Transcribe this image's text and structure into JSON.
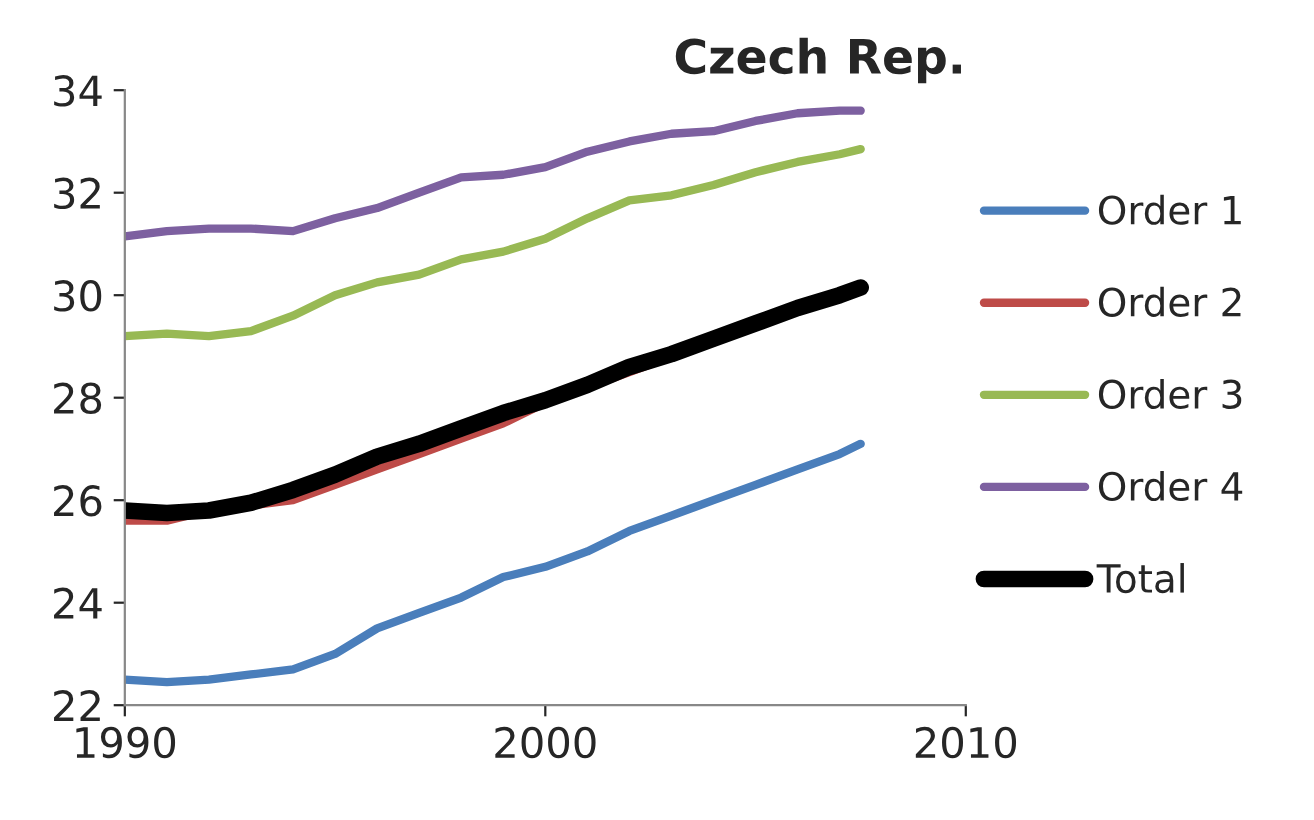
{
  "chart_data": {
    "type": "line",
    "title": "Czech Rep.",
    "x": [
      1990,
      1991,
      1992,
      1993,
      1994,
      1995,
      1996,
      1997,
      1998,
      1999,
      2000,
      2001,
      2002,
      2003,
      2004,
      2005,
      2006,
      2007,
      2007.5
    ],
    "series": [
      {
        "name": "Order 1",
        "color": "#4a7ebb",
        "values": [
          22.5,
          22.45,
          22.5,
          22.6,
          22.7,
          23.0,
          23.5,
          23.8,
          24.1,
          24.5,
          24.7,
          25.0,
          25.4,
          25.7,
          26.0,
          26.3,
          26.6,
          26.9,
          27.1
        ]
      },
      {
        "name": "Order 2",
        "color": "#be4b48",
        "values": [
          25.6,
          25.6,
          25.8,
          25.9,
          26.0,
          26.3,
          26.6,
          26.9,
          27.2,
          27.5,
          27.9,
          28.2,
          28.5,
          28.8,
          null,
          null,
          null,
          null,
          null
        ]
      },
      {
        "name": "Order 3",
        "color": "#98b954",
        "values": [
          29.2,
          29.25,
          29.2,
          29.3,
          29.6,
          30.0,
          30.25,
          30.4,
          30.7,
          30.85,
          31.1,
          31.5,
          31.85,
          31.95,
          32.15,
          32.4,
          32.6,
          32.75,
          32.85
        ]
      },
      {
        "name": "Order 4",
        "color": "#7d60a0",
        "values": [
          31.15,
          31.25,
          31.3,
          31.3,
          31.25,
          31.5,
          31.7,
          32.0,
          32.3,
          32.35,
          32.5,
          32.8,
          33.0,
          33.15,
          33.2,
          33.4,
          33.55,
          33.6,
          33.6
        ]
      },
      {
        "name": "Total",
        "color": "#000000",
        "values": [
          25.8,
          25.75,
          25.8,
          25.95,
          26.2,
          26.5,
          26.85,
          27.1,
          27.4,
          27.7,
          27.95,
          28.25,
          28.6,
          28.85,
          29.15,
          29.45,
          29.75,
          30.0,
          30.15
        ]
      }
    ],
    "xlim": [
      1990,
      2010
    ],
    "xticks": [
      1990,
      2000,
      2010
    ],
    "ylim": [
      22,
      34
    ],
    "yticks": [
      22,
      24,
      26,
      28,
      30,
      32,
      34
    ],
    "grid": false,
    "legend": "right",
    "marker": "none",
    "line_style": "solid"
  }
}
